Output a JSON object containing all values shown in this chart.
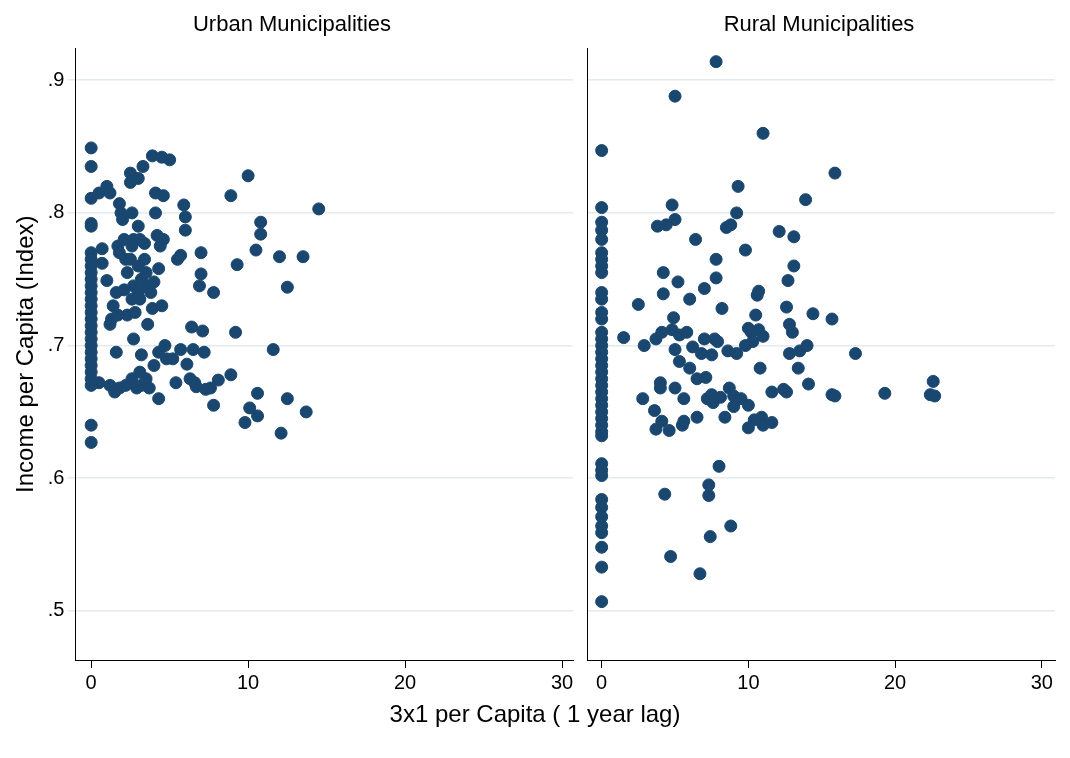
{
  "chart_data": [
    {
      "type": "scatter",
      "title": "Urban Municipalities",
      "xlabel": "3x1 per Capita ( 1 year lag)",
      "ylabel": "Income per Capita (Index)",
      "color": "#1a476f",
      "marker": "circle",
      "grid": "y",
      "legend": false,
      "xlim": [
        -1,
        30.7
      ],
      "xticks": [
        0,
        10,
        20,
        30
      ],
      "ylim": [
        0.463,
        0.924
      ],
      "yticks": [
        {
          "value": 0.5,
          "label": ".5"
        },
        {
          "value": 0.6,
          "label": ".6"
        },
        {
          "value": 0.7,
          "label": ".7"
        },
        {
          "value": 0.8,
          "label": ".8"
        },
        {
          "value": 0.9,
          "label": ".9"
        }
      ],
      "x": [
        0,
        0,
        0,
        0,
        0,
        0,
        0,
        0,
        0,
        0,
        0,
        0,
        0,
        0,
        0,
        0,
        0,
        0,
        0,
        0,
        0,
        0,
        0,
        0,
        0,
        0,
        0,
        0,
        0.5,
        0.7,
        0.7,
        0.5,
        1,
        1.2,
        1,
        1.2,
        1.3,
        1.4,
        1.2,
        1.5,
        1.8,
        1.9,
        1.7,
        1.8,
        1.6,
        1.7,
        1.6,
        1.8,
        2,
        2.1,
        2.2,
        2.3,
        2.1,
        2.3,
        2.2,
        2.5,
        2.5,
        2.6,
        2.7,
        2.6,
        2.5,
        2.7,
        2.6,
        2.8,
        2.7,
        2.6,
        2.9,
        3,
        3,
        3.1,
        3,
        3.2,
        3,
        3.1,
        3.2,
        3.1,
        3.2,
        3.3,
        3.4,
        3.4,
        3.5,
        3.5,
        3.6,
        3.5,
        3.7,
        3.8,
        3.9,
        3.9,
        4,
        4,
        4.1,
        4.1,
        4.2,
        4.3,
        4.4,
        4.3,
        4.3,
        4.5,
        4.6,
        4.6,
        4.5,
        4.7,
        4.8,
        5,
        5.2,
        5.4,
        5.5,
        5.7,
        5.7,
        5.9,
        6,
        6,
        6.1,
        6.3,
        6.4,
        6.5,
        6.6,
        6.7,
        6.9,
        7,
        7,
        7.1,
        7.2,
        7.3,
        7.6,
        7.8,
        7.8,
        8.1,
        8.9,
        8.9,
        9.2,
        9.3,
        9.8,
        10,
        10.1,
        10.5,
        10.6,
        10.6,
        10.8,
        10.8,
        11.6,
        12,
        12.1,
        12.5,
        12.5,
        13.5,
        13.7,
        14.5
      ],
      "values": [
        0.849,
        0.835,
        0.811,
        0.792,
        0.79,
        0.77,
        0.765,
        0.76,
        0.755,
        0.75,
        0.745,
        0.74,
        0.735,
        0.73,
        0.725,
        0.72,
        0.715,
        0.71,
        0.705,
        0.7,
        0.695,
        0.69,
        0.685,
        0.68,
        0.675,
        0.67,
        0.64,
        0.627,
        0.815,
        0.773,
        0.762,
        0.672,
        0.82,
        0.815,
        0.749,
        0.716,
        0.72,
        0.73,
        0.67,
        0.665,
        0.807,
        0.8,
        0.775,
        0.77,
        0.74,
        0.723,
        0.695,
        0.668,
        0.795,
        0.78,
        0.765,
        0.755,
        0.742,
        0.723,
        0.67,
        0.83,
        0.823,
        0.8,
        0.78,
        0.775,
        0.765,
        0.745,
        0.735,
        0.725,
        0.705,
        0.675,
        0.668,
        0.826,
        0.79,
        0.78,
        0.76,
        0.75,
        0.74,
        0.735,
        0.693,
        0.68,
        0.67,
        0.835,
        0.777,
        0.765,
        0.755,
        0.745,
        0.716,
        0.675,
        0.668,
        0.74,
        0.728,
        0.843,
        0.748,
        0.685,
        0.815,
        0.8,
        0.783,
        0.758,
        0.775,
        0.695,
        0.66,
        0.842,
        0.813,
        0.78,
        0.73,
        0.7,
        0.69,
        0.84,
        0.69,
        0.672,
        0.765,
        0.768,
        0.697,
        0.806,
        0.797,
        0.787,
        0.686,
        0.675,
        0.714,
        0.697,
        0.672,
        0.669,
        0.745,
        0.754,
        0.77,
        0.711,
        0.695,
        0.667,
        0.668,
        0.655,
        0.74,
        0.674,
        0.813,
        0.678,
        0.71,
        0.761,
        0.642,
        0.828,
        0.653,
        0.772,
        0.664,
        0.647,
        0.793,
        0.784,
        0.697,
        0.767,
        0.634,
        0.744,
        0.66,
        0.767,
        0.65,
        0.803
      ]
    },
    {
      "type": "scatter",
      "title": "Rural Municipalities",
      "color": "#1a476f",
      "marker": "circle",
      "grid": "y",
      "legend": false,
      "tick_labels": "x",
      "xlim": [
        -1,
        30.9
      ],
      "xticks": [
        0,
        10,
        20,
        30
      ],
      "ylim": [
        0.463,
        0.924
      ],
      "yticks": [
        0.5,
        0.6,
        0.7,
        0.8,
        0.9
      ],
      "x": [
        0,
        0,
        0,
        0,
        0,
        0,
        0,
        0,
        0,
        0,
        0,
        0,
        0,
        0,
        0,
        0,
        0,
        0,
        0,
        0,
        0,
        0,
        0,
        0,
        0,
        0,
        0,
        0,
        0,
        0,
        0,
        0,
        0,
        0,
        0,
        0,
        0,
        0,
        0,
        0,
        0,
        1.5,
        2.5,
        2.8,
        2.9,
        3.6,
        3.7,
        3.7,
        3.8,
        4,
        4,
        4.1,
        4.1,
        4.2,
        4.2,
        4.3,
        4.4,
        4.6,
        4.7,
        4.8,
        4.8,
        4.9,
        5,
        5,
        5,
        5,
        5.2,
        5.3,
        5.3,
        5.5,
        5.6,
        5.6,
        5.8,
        6,
        6,
        6.2,
        6.4,
        6.5,
        6.5,
        6.7,
        6.8,
        7,
        7,
        7.1,
        7.2,
        7.3,
        7.3,
        7.4,
        7.5,
        7.5,
        7.6,
        7.7,
        7.8,
        7.8,
        7.8,
        7.9,
        8,
        8.1,
        8.2,
        8.4,
        8.5,
        8.6,
        8.7,
        8.8,
        8.8,
        9,
        9,
        9.2,
        9.2,
        9.3,
        9.5,
        9.8,
        9.8,
        10,
        10,
        10,
        10.2,
        10.3,
        10.4,
        10.5,
        10.6,
        10.7,
        10.7,
        10.8,
        10.9,
        11,
        11,
        11,
        11.6,
        11.6,
        12.1,
        12.4,
        12.6,
        12.6,
        12.7,
        12.8,
        12.8,
        13,
        13.1,
        13.1,
        13.4,
        13.5,
        13.9,
        14,
        14.1,
        14.4,
        15.7,
        15.7,
        15.9,
        15.9,
        17.3,
        19.3,
        22.4,
        22.6,
        22.7
      ],
      "values": [
        0.847,
        0.804,
        0.793,
        0.787,
        0.78,
        0.77,
        0.765,
        0.76,
        0.755,
        0.74,
        0.735,
        0.725,
        0.72,
        0.71,
        0.705,
        0.7,
        0.695,
        0.69,
        0.685,
        0.68,
        0.675,
        0.67,
        0.665,
        0.66,
        0.655,
        0.65,
        0.645,
        0.64,
        0.635,
        0.632,
        0.611,
        0.606,
        0.602,
        0.584,
        0.578,
        0.571,
        0.564,
        0.559,
        0.548,
        0.533,
        0.507,
        0.706,
        0.731,
        0.66,
        0.7,
        0.651,
        0.637,
        0.705,
        0.79,
        0.672,
        0.668,
        0.643,
        0.71,
        0.739,
        0.755,
        0.588,
        0.791,
        0.636,
        0.541,
        0.712,
        0.806,
        0.721,
        0.795,
        0.888,
        0.697,
        0.668,
        0.748,
        0.708,
        0.688,
        0.64,
        0.643,
        0.66,
        0.71,
        0.735,
        0.683,
        0.699,
        0.78,
        0.646,
        0.675,
        0.528,
        0.694,
        0.743,
        0.705,
        0.676,
        0.66,
        0.587,
        0.595,
        0.556,
        0.693,
        0.663,
        0.657,
        0.705,
        0.914,
        0.751,
        0.765,
        0.703,
        0.609,
        0.661,
        0.728,
        0.646,
        0.789,
        0.696,
        0.668,
        0.791,
        0.564,
        0.662,
        0.654,
        0.694,
        0.8,
        0.82,
        0.66,
        0.7,
        0.772,
        0.638,
        0.655,
        0.713,
        0.71,
        0.703,
        0.644,
        0.723,
        0.738,
        0.741,
        0.712,
        0.683,
        0.646,
        0.86,
        0.64,
        0.707,
        0.642,
        0.665,
        0.786,
        0.667,
        0.729,
        0.665,
        0.749,
        0.716,
        0.694,
        0.71,
        0.782,
        0.76,
        0.683,
        0.696,
        0.81,
        0.7,
        0.671,
        0.724,
        0.72,
        0.663,
        0.662,
        0.83,
        0.694,
        0.664,
        0.663,
        0.673,
        0.662
      ]
    }
  ]
}
